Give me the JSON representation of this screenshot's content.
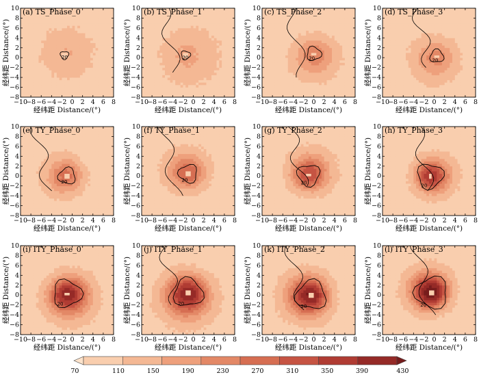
{
  "chart_data": {
    "type": "heatmap",
    "xlabel": "经纬距 Distance/(°)",
    "ylabel": "经纬距 Distance/(°)",
    "xlim": [
      -10,
      8
    ],
    "ylim": [
      -8,
      10
    ],
    "xticks": [
      -10,
      -8,
      -6,
      -4,
      -2,
      0,
      2,
      4,
      6,
      8
    ],
    "yticks": [
      -8,
      -6,
      -4,
      -2,
      0,
      2,
      4,
      6,
      8,
      10
    ],
    "contour_level": 20,
    "colorbar": {
      "ticks": [
        70,
        110,
        150,
        190,
        230,
        270,
        310,
        350,
        390,
        430
      ],
      "colors": [
        "#fde3cb",
        "#f9ceae",
        "#f4b894",
        "#eea07c",
        "#e38866",
        "#d66e52",
        "#c65443",
        "#b03c33",
        "#952a27",
        "#761c1c"
      ]
    },
    "panels": [
      {
        "title": "(a) TS_Phase_0",
        "center": [
          -1.5,
          0.5
        ],
        "peak": 150,
        "spread": 3.2,
        "land": false
      },
      {
        "title": "(b) TS_Phase_1",
        "center": [
          -1.5,
          0.5
        ],
        "peak": 160,
        "spread": 3.4,
        "land": true
      },
      {
        "title": "(c) TS_Phase_2",
        "center": [
          0.0,
          0.8
        ],
        "peak": 220,
        "spread": 2.6,
        "land": true
      },
      {
        "title": "(d) TS_Phase_3",
        "center": [
          0.5,
          0.3
        ],
        "peak": 210,
        "spread": 2.6,
        "land": true
      },
      {
        "title": "(e) TY_Phase_0",
        "center": [
          -1.0,
          0.0
        ],
        "peak": 250,
        "spread": 2.3,
        "land": true
      },
      {
        "title": "(f) TY_Phase_1",
        "center": [
          -1.0,
          0.5
        ],
        "peak": 270,
        "spread": 2.4,
        "land": true
      },
      {
        "title": "(g) TY_Phase_2",
        "center": [
          -1.0,
          0.2
        ],
        "peak": 310,
        "spread": 2.4,
        "land": true
      },
      {
        "title": "(h) TY_Phase_3",
        "center": [
          -0.8,
          0.0
        ],
        "peak": 350,
        "spread": 2.2,
        "land": true
      },
      {
        "title": "(i) ITY_Phase_0",
        "center": [
          -1.0,
          0.3
        ],
        "peak": 380,
        "spread": 2.6,
        "land": false
      },
      {
        "title": "(j) ITY_Phase_1",
        "center": [
          -1.0,
          0.5
        ],
        "peak": 390,
        "spread": 2.8,
        "land": true
      },
      {
        "title": "(k) ITY_Phase_2",
        "center": [
          -0.5,
          0.0
        ],
        "peak": 400,
        "spread": 2.6,
        "land": true
      },
      {
        "title": "(l) ITY_Phase_3",
        "center": [
          -0.5,
          0.5
        ],
        "peak": 430,
        "spread": 2.4,
        "land": true
      }
    ]
  }
}
